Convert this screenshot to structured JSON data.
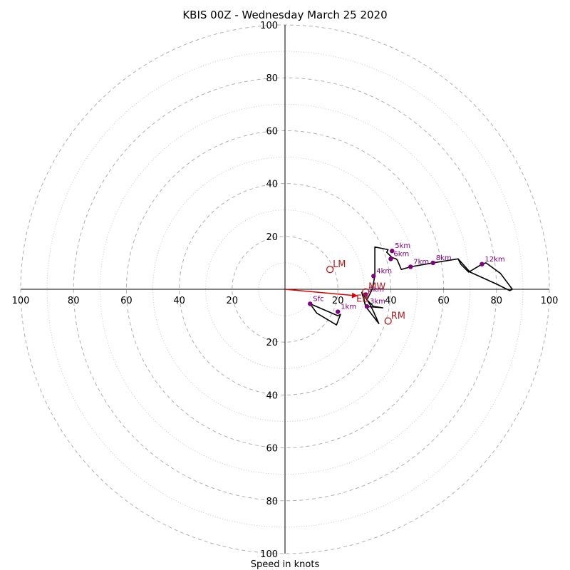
{
  "chart_data": {
    "type": "hodograph",
    "title": "KBIS 00Z - Wednesday March 25 2020",
    "xlabel": "Speed in knots",
    "range": [
      -100,
      100
    ],
    "major_rings": [
      20,
      40,
      60,
      80,
      100
    ],
    "minor_rings": [
      10,
      30,
      50,
      70,
      90
    ],
    "ticks": {
      "x_left": [
        "100",
        "80",
        "60",
        "40",
        "20"
      ],
      "x_right": [
        "20",
        "40",
        "60",
        "80",
        "100"
      ],
      "y_top": [
        "20",
        "40",
        "60",
        "80",
        "100"
      ],
      "y_bottom": [
        "20",
        "40",
        "60",
        "80",
        "100"
      ]
    },
    "profile": [
      [
        9.5,
        -5.5
      ],
      [
        20,
        -10
      ],
      [
        21,
        -9.5
      ],
      [
        19.5,
        -13.5
      ],
      [
        12,
        -9
      ],
      [
        9.5,
        -5.5
      ]
    ],
    "profile_upper": [
      [
        29.5,
        -2
      ],
      [
        30.5,
        -6.5
      ],
      [
        37,
        -7
      ],
      [
        33.5,
        -6.5
      ],
      [
        31,
        -4
      ],
      [
        33,
        0
      ],
      [
        34,
        5
      ],
      [
        34,
        16
      ],
      [
        39,
        15
      ],
      [
        38.5,
        14
      ],
      [
        40.5,
        12
      ],
      [
        42,
        11.5
      ],
      [
        42.5,
        11
      ],
      [
        44,
        7.5
      ],
      [
        47.5,
        8.5
      ],
      [
        56,
        10
      ],
      [
        65.5,
        11.5
      ],
      [
        66.5,
        9.5
      ],
      [
        69.5,
        6.5
      ],
      [
        74.5,
        9.5
      ],
      [
        76,
        10
      ],
      [
        81.5,
        6
      ],
      [
        86,
        0
      ],
      [
        85,
        -0.5
      ],
      [
        80,
        2
      ],
      [
        70,
        6.5
      ],
      [
        65.5,
        11.5
      ]
    ],
    "profile_lower": [
      [
        29.5,
        -2
      ],
      [
        31,
        -4
      ],
      [
        32,
        -5.5
      ],
      [
        33.5,
        -8.5
      ],
      [
        35.5,
        -13
      ],
      [
        30.5,
        -6.5
      ],
      [
        29,
        -1
      ]
    ],
    "height_points": [
      {
        "label": "Sfc",
        "u": 9.5,
        "v": -5.5
      },
      {
        "label": "1km",
        "u": 20,
        "v": -8.5
      },
      {
        "label": "2km",
        "u": 30.5,
        "v": -2
      },
      {
        "label": "3km",
        "u": 31,
        "v": -6.5
      },
      {
        "label": "4km",
        "u": 33.5,
        "v": 5
      },
      {
        "label": "5km",
        "u": 40.5,
        "v": 14.5
      },
      {
        "label": "6km",
        "u": 40,
        "v": 11.5
      },
      {
        "label": "7km",
        "u": 47.5,
        "v": 8.5
      },
      {
        "label": "8km",
        "u": 56,
        "v": 10
      },
      {
        "label": "12km",
        "u": 74.5,
        "v": 9.5
      }
    ],
    "storm_motion": [
      {
        "label": "LM",
        "u": 17,
        "v": 7.5
      },
      {
        "label": "RM",
        "u": 39,
        "v": -12
      },
      {
        "label": "MW",
        "u": 30.5,
        "v": -1
      }
    ],
    "bunkers_arrow": {
      "label": "EB",
      "u": 27.5,
      "v": -2.5
    },
    "colors": {
      "profile": "#000000",
      "height_points": "#800080",
      "storm_motion": "#b22222",
      "arrow": "#e00000",
      "major_grid": "#b0b0b0",
      "minor_grid": "#c8c8c8"
    }
  }
}
